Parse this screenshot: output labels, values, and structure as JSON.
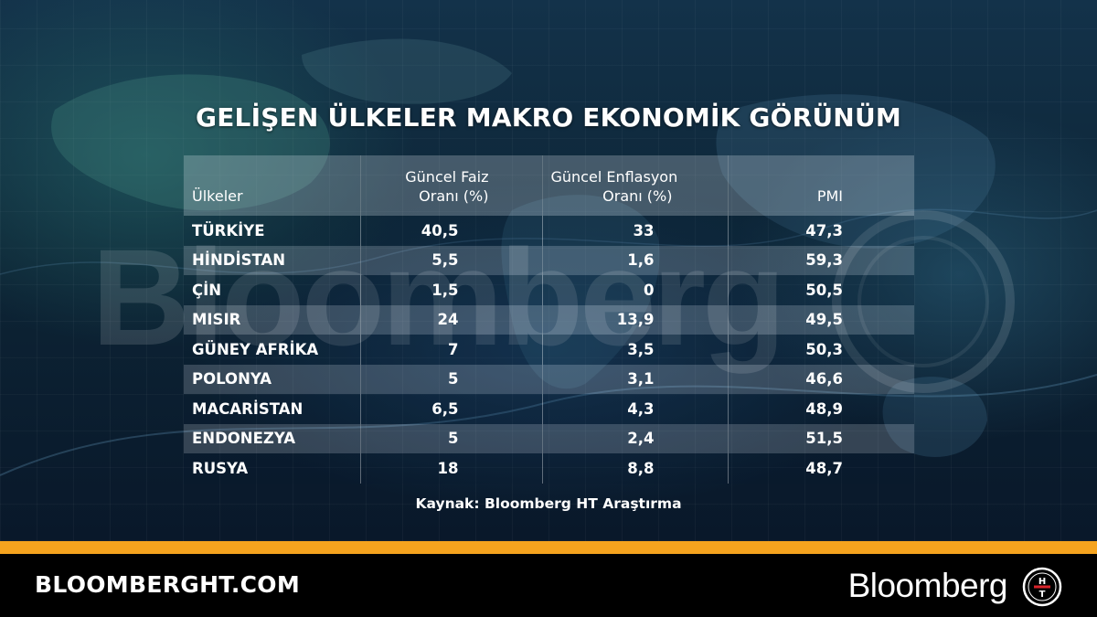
{
  "title": "GELİŞEN ÜLKELER MAKRO EKONOMİK GÖRÜNÜM",
  "watermark": "Bloomberg",
  "chart_data": {
    "type": "table",
    "columns": [
      "Ülkeler",
      "Güncel Faiz Oranı (%)",
      "Güncel Enflasyon Oranı (%)",
      "PMI"
    ],
    "header_lines": {
      "country": "Ülkeler",
      "rate_line1": "Güncel Faiz",
      "rate_line2": "Oranı (%)",
      "inflation_line1": "Güncel Enflasyon",
      "inflation_line2": "Oranı (%)",
      "pmi": "PMI"
    },
    "rows": [
      {
        "country": "TÜRKİYE",
        "rate": "40,5",
        "inflation": "33",
        "pmi": "47,3"
      },
      {
        "country": "HİNDİSTAN",
        "rate": "5,5",
        "inflation": "1,6",
        "pmi": "59,3"
      },
      {
        "country": "ÇİN",
        "rate": "1,5",
        "inflation": "0",
        "pmi": "50,5"
      },
      {
        "country": "MISIR",
        "rate": "24",
        "inflation": "13,9",
        "pmi": "49,5"
      },
      {
        "country": "GÜNEY AFRİKA",
        "rate": "7",
        "inflation": "3,5",
        "pmi": "50,3"
      },
      {
        "country": "POLONYA",
        "rate": "5",
        "inflation": "3,1",
        "pmi": "46,6"
      },
      {
        "country": "MACARİSTAN",
        "rate": "6,5",
        "inflation": "4,3",
        "pmi": "48,9"
      },
      {
        "country": "ENDONEZYA",
        "rate": "5",
        "inflation": "2,4",
        "pmi": "51,5"
      },
      {
        "country": "RUSYA",
        "rate": "18",
        "inflation": "8,8",
        "pmi": "48,7"
      }
    ]
  },
  "source": "Kaynak: Bloomberg HT Araştırma",
  "footer": {
    "site": "BLOOMBERGHT.COM",
    "brand": "Bloomberg",
    "logo_text": "HT"
  },
  "colors": {
    "accent_bar": "#f5a31e",
    "footer_bg": "#000000",
    "background": "#0d2536"
  }
}
